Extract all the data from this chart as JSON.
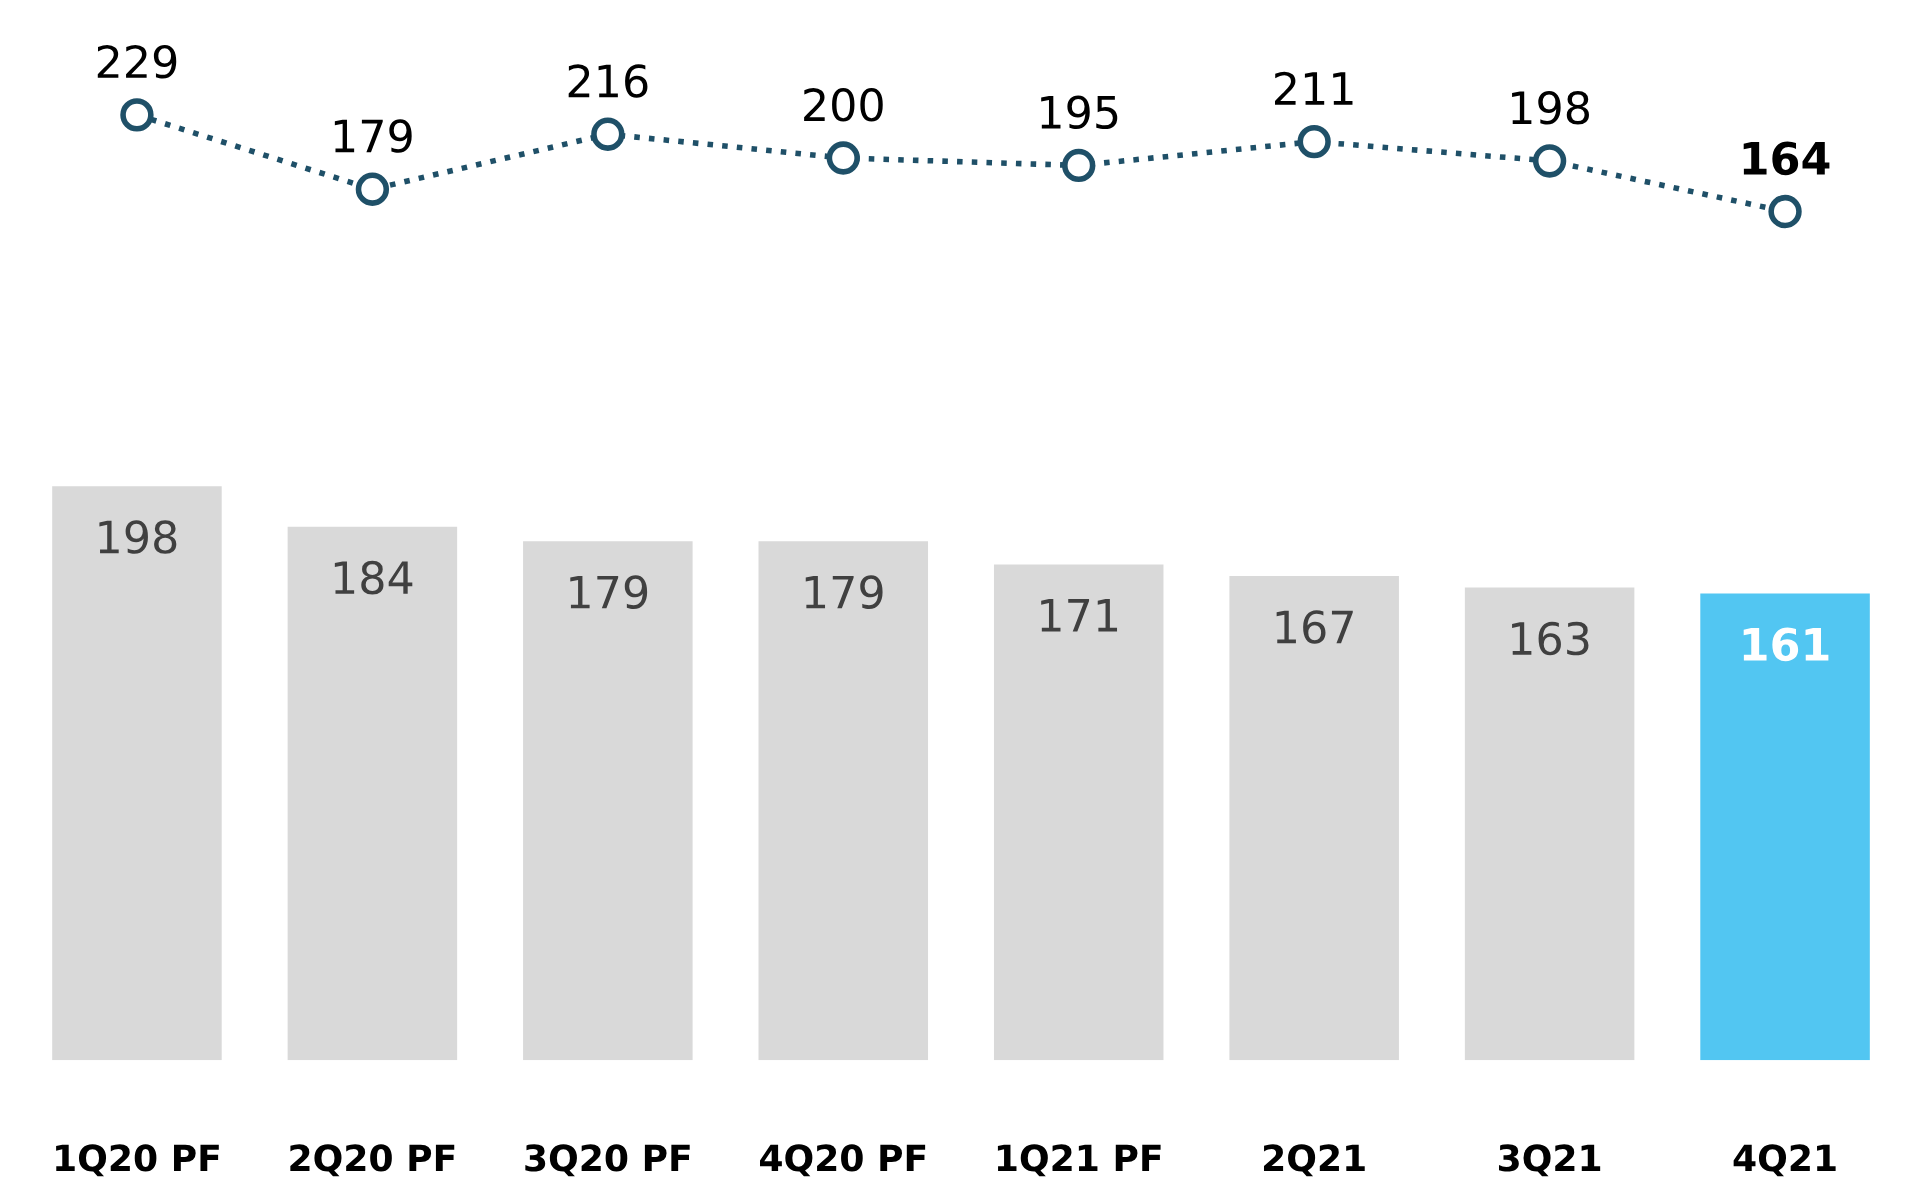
{
  "chart_data": [
    {
      "type": "line",
      "categories": [
        null,
        null,
        null,
        null,
        null,
        null,
        null,
        null
      ],
      "series": [
        {
          "color": "#1f5068",
          "values": [
            229,
            179,
            216,
            200,
            195,
            211,
            198,
            164
          ]
        }
      ],
      "marker": "circle",
      "line_style": "dotted",
      "tick_labels": false,
      "data_labels": true
    },
    {
      "type": "bar",
      "categories": [
        "1Q20 PF",
        "2Q20 PF",
        "3Q20 PF",
        "4Q20 PF",
        "1Q21 PF",
        "2Q21",
        "3Q21",
        "4Q21"
      ],
      "series": [
        {
          "colors": [
            "#d9d9d9",
            "#d9d9d9",
            "#d9d9d9",
            "#d9d9d9",
            "#d9d9d9",
            "#d9d9d9",
            "#d9d9d9",
            "#52c6f2"
          ],
          "values": [
            198,
            184,
            179,
            179,
            171,
            167,
            163,
            161
          ]
        }
      ],
      "tick_labels": "x",
      "data_labels": true
    }
  ]
}
